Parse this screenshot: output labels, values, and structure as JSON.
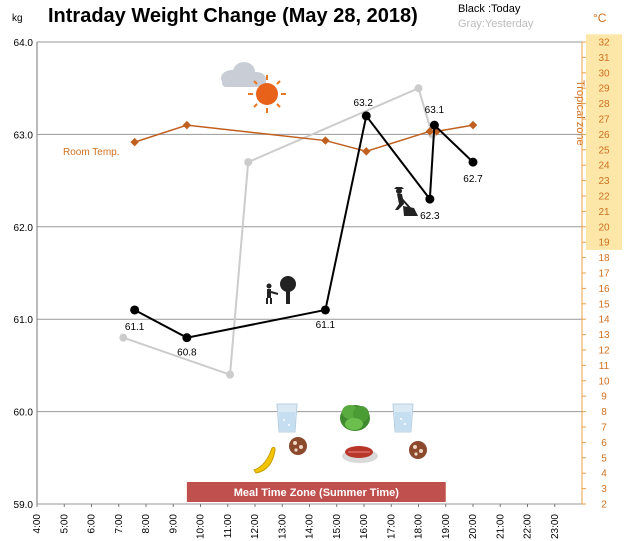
{
  "chart_data": {
    "type": "line",
    "title": "Intraday Weight Change (May 28, 2018)",
    "y_unit_left": "kg",
    "y_unit_right": "°C",
    "legend": {
      "today": "Black :Today",
      "yesterday": "Gray:Yesterday"
    },
    "tropical_zone_label": "Tropical zone",
    "tropical_zone_range": [
      19,
      32
    ],
    "meal_zone_label": "Meal Time Zone  (Summer Time)",
    "meal_zone_range": [
      "9:30",
      "19:00"
    ],
    "room_temp_label": "Room Temp.",
    "ylim": [
      59.0,
      64.0
    ],
    "y2lim": [
      2,
      32
    ],
    "xlim": [
      "4:00",
      "24:00"
    ],
    "y_ticks": [
      "59.0",
      "60.0",
      "61.0",
      "62.0",
      "63.0",
      "64.0"
    ],
    "y2_ticks": [
      "2",
      "3",
      "4",
      "5",
      "6",
      "7",
      "8",
      "9",
      "10",
      "11",
      "12",
      "13",
      "14",
      "15",
      "16",
      "17",
      "18",
      "19",
      "20",
      "21",
      "22",
      "23",
      "24",
      "25",
      "26",
      "27",
      "28",
      "29",
      "30",
      "31",
      "32"
    ],
    "x_ticks": [
      "4:00",
      "5:00",
      "6:00",
      "7:00",
      "8:00",
      "9:00",
      "10:00",
      "11:00",
      "12:00",
      "13:00",
      "14:00",
      "15:00",
      "16:00",
      "17:00",
      "18:00",
      "19:00",
      "20:00",
      "21:00",
      "22:00",
      "23:00"
    ],
    "series": [
      {
        "name": "Today",
        "color": "#000000",
        "points": [
          {
            "x": "7:35",
            "y": 61.1,
            "label": "61.1"
          },
          {
            "x": "9:30",
            "y": 60.8,
            "label": "60.8"
          },
          {
            "x": "14:35",
            "y": 61.1,
            "label": "61.1"
          },
          {
            "x": "16:05",
            "y": 63.2,
            "label": "63.2"
          },
          {
            "x": "18:25",
            "y": 62.3,
            "label": "62.3"
          },
          {
            "x": "18:35",
            "y": 63.1,
            "label": "63.1"
          },
          {
            "x": "20:00",
            "y": 62.7,
            "label": "62.7"
          }
        ]
      },
      {
        "name": "Yesterday",
        "color": "#cccccc",
        "points": [
          {
            "x": "7:10",
            "y": 60.8
          },
          {
            "x": "11:05",
            "y": 60.4
          },
          {
            "x": "11:45",
            "y": 62.7
          },
          {
            "x": "18:00",
            "y": 63.5
          },
          {
            "x": "18:30",
            "y": 63.0
          }
        ]
      },
      {
        "name": "Room Temp.",
        "color": "#c06020",
        "axis": "right",
        "points": [
          {
            "x": "7:35",
            "y": 25.5
          },
          {
            "x": "9:30",
            "y": 26.6
          },
          {
            "x": "14:35",
            "y": 25.6
          },
          {
            "x": "16:05",
            "y": 24.9
          },
          {
            "x": "18:25",
            "y": 26.2
          },
          {
            "x": "18:40",
            "y": 26.2
          },
          {
            "x": "20:00",
            "y": 26.6
          }
        ]
      }
    ],
    "icons": [
      "cloud-icon",
      "sun-icon",
      "person-tree-icon",
      "person-gardening-icon",
      "water-glass-icon",
      "banana-icon",
      "cookie-icon",
      "lettuce-icon",
      "steak-icon"
    ]
  }
}
